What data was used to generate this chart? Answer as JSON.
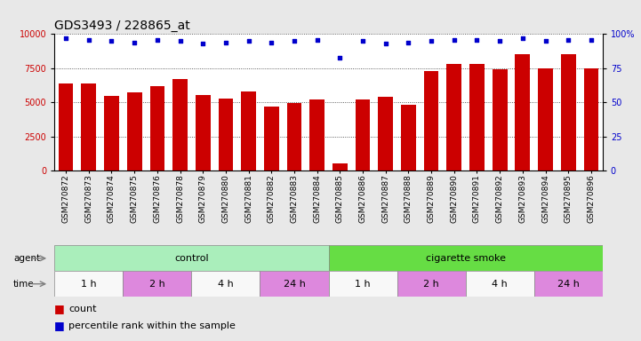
{
  "title": "GDS3493 / 228865_at",
  "samples": [
    "GSM270872",
    "GSM270873",
    "GSM270874",
    "GSM270875",
    "GSM270876",
    "GSM270878",
    "GSM270879",
    "GSM270880",
    "GSM270881",
    "GSM270882",
    "GSM270883",
    "GSM270884",
    "GSM270885",
    "GSM270886",
    "GSM270887",
    "GSM270888",
    "GSM270889",
    "GSM270890",
    "GSM270891",
    "GSM270892",
    "GSM270893",
    "GSM270894",
    "GSM270895",
    "GSM270896"
  ],
  "counts": [
    6400,
    6350,
    5450,
    5750,
    6200,
    6700,
    5550,
    5300,
    5800,
    4700,
    4950,
    5200,
    550,
    5200,
    5400,
    4800,
    7300,
    7800,
    7800,
    7450,
    8500,
    7500,
    8500,
    7500
  ],
  "percentile_ranks": [
    97,
    96,
    95,
    94,
    96,
    95,
    93,
    94,
    95,
    94,
    95,
    96,
    83,
    95,
    93,
    94,
    95,
    96,
    96,
    95,
    97,
    95,
    96,
    96
  ],
  "bar_color": "#cc0000",
  "dot_color": "#0000cc",
  "agent_groups": [
    {
      "label": "control",
      "start": 0,
      "end": 12,
      "color": "#aaeebb"
    },
    {
      "label": "cigarette smoke",
      "start": 12,
      "end": 24,
      "color": "#66dd44"
    }
  ],
  "time_groups": [
    {
      "label": "1 h",
      "start": 0,
      "end": 3,
      "color": "#f8f8f8"
    },
    {
      "label": "2 h",
      "start": 3,
      "end": 6,
      "color": "#dd88dd"
    },
    {
      "label": "4 h",
      "start": 6,
      "end": 9,
      "color": "#f8f8f8"
    },
    {
      "label": "24 h",
      "start": 9,
      "end": 12,
      "color": "#dd88dd"
    },
    {
      "label": "1 h",
      "start": 12,
      "end": 15,
      "color": "#f8f8f8"
    },
    {
      "label": "2 h",
      "start": 15,
      "end": 18,
      "color": "#dd88dd"
    },
    {
      "label": "4 h",
      "start": 18,
      "end": 21,
      "color": "#f8f8f8"
    },
    {
      "label": "24 h",
      "start": 21,
      "end": 24,
      "color": "#dd88dd"
    }
  ],
  "ylim_left": [
    0,
    10000
  ],
  "ylim_right": [
    0,
    100
  ],
  "yticks_left": [
    0,
    2500,
    5000,
    7500,
    10000
  ],
  "yticks_right": [
    0,
    25,
    50,
    75,
    100
  ],
  "background_color": "#e8e8e8",
  "plot_bg_color": "#ffffff",
  "grid_color": "#333333",
  "title_fontsize": 10,
  "tick_fontsize": 7,
  "bar_fontsize": 6.5,
  "legend_fontsize": 8,
  "row_label_fontsize": 7.5,
  "row_text_fontsize": 8
}
